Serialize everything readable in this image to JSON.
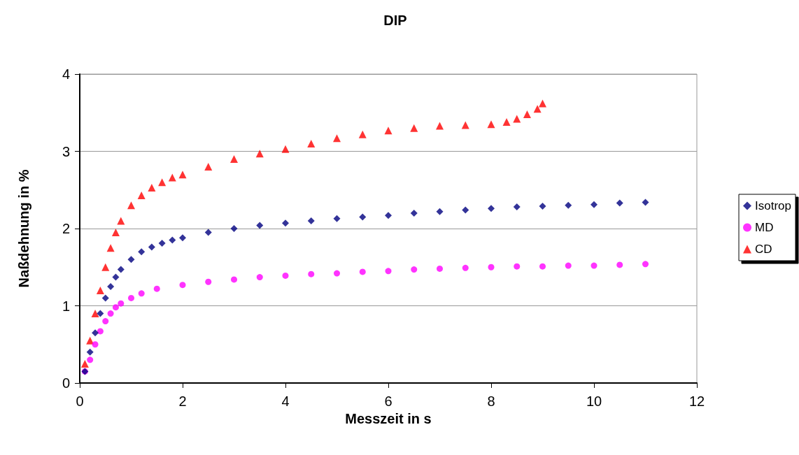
{
  "chart_data": {
    "type": "scatter",
    "title": "DIP",
    "xlabel": "Messzeit in s",
    "ylabel": "Naßdehnung in %",
    "xlim": [
      0,
      12
    ],
    "xticks": [
      0,
      2,
      4,
      6,
      8,
      10,
      12
    ],
    "ylim": [
      0,
      4
    ],
    "yticks": [
      0,
      1,
      2,
      3,
      4
    ],
    "grid": "y",
    "legend": "right",
    "series": [
      {
        "name": "Isotrop",
        "color": "#000080",
        "marker": "diamond",
        "x": [
          0.1,
          0.2,
          0.3,
          0.4,
          0.5,
          0.6,
          0.7,
          0.8,
          1.0,
          1.2,
          1.4,
          1.6,
          1.8,
          2.0,
          2.5,
          3.0,
          3.5,
          4.0,
          4.5,
          5.0,
          5.5,
          6.0,
          6.5,
          7.0,
          7.5,
          8.0,
          8.5,
          9.0,
          9.5,
          10.0,
          10.5,
          11.0
        ],
        "values": [
          0.15,
          0.4,
          0.65,
          0.9,
          1.1,
          1.25,
          1.37,
          1.47,
          1.6,
          1.7,
          1.76,
          1.81,
          1.85,
          1.88,
          1.95,
          2.0,
          2.04,
          2.07,
          2.1,
          2.13,
          2.15,
          2.17,
          2.2,
          2.22,
          2.24,
          2.26,
          2.28,
          2.29,
          2.3,
          2.31,
          2.33,
          2.34
        ]
      },
      {
        "name": "MD",
        "color": "#ff00ff",
        "marker": "circle",
        "x": [
          0.1,
          0.2,
          0.3,
          0.4,
          0.5,
          0.6,
          0.7,
          0.8,
          1.0,
          1.2,
          1.5,
          2.0,
          2.5,
          3.0,
          3.5,
          4.0,
          4.5,
          5.0,
          5.5,
          6.0,
          6.5,
          7.0,
          7.5,
          8.0,
          8.5,
          9.0,
          9.5,
          10.0,
          10.5,
          11.0
        ],
        "values": [
          0.15,
          0.3,
          0.5,
          0.67,
          0.8,
          0.9,
          0.98,
          1.03,
          1.1,
          1.16,
          1.22,
          1.27,
          1.31,
          1.34,
          1.37,
          1.39,
          1.41,
          1.42,
          1.44,
          1.45,
          1.47,
          1.48,
          1.49,
          1.5,
          1.51,
          1.51,
          1.52,
          1.52,
          1.53,
          1.54
        ]
      },
      {
        "name": "CD",
        "color": "#ff0000",
        "marker": "triangle",
        "x": [
          0.1,
          0.2,
          0.3,
          0.4,
          0.5,
          0.6,
          0.7,
          0.8,
          1.0,
          1.2,
          1.4,
          1.6,
          1.8,
          2.0,
          2.5,
          3.0,
          3.5,
          4.0,
          4.5,
          5.0,
          5.5,
          6.0,
          6.5,
          7.0,
          7.5,
          8.0,
          8.3,
          8.5,
          8.7,
          8.9,
          9.0
        ],
        "values": [
          0.25,
          0.55,
          0.9,
          1.2,
          1.5,
          1.75,
          1.95,
          2.1,
          2.3,
          2.43,
          2.53,
          2.6,
          2.66,
          2.7,
          2.8,
          2.9,
          2.97,
          3.03,
          3.1,
          3.17,
          3.22,
          3.27,
          3.3,
          3.33,
          3.34,
          3.35,
          3.38,
          3.42,
          3.48,
          3.55,
          3.62
        ]
      }
    ]
  }
}
